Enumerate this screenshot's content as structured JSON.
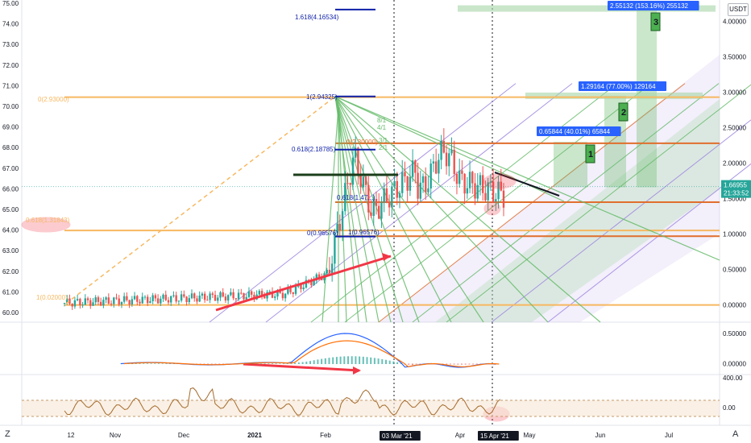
{
  "chart_data": [
    {
      "type": "line",
      "title": "",
      "panel": "price",
      "y_left": {
        "ylim": [
          59.6,
          75.3
        ],
        "ticks": [
          "75.00",
          "74.00",
          "73.00",
          "72.00",
          "71.00",
          "70.00",
          "69.00",
          "68.00",
          "67.00",
          "66.00",
          "65.00",
          "64.00",
          "63.00",
          "62.00",
          "61.00",
          "60.00"
        ]
      },
      "y_right": {
        "unit": "USDT",
        "ticks": [
          "4.00000",
          "3.50000",
          "3.00000",
          "2.50000",
          "2.00000",
          "1.50000",
          "1.00000",
          "0.50000",
          "0.00000"
        ]
      },
      "x_ticks": [
        "12",
        "Nov",
        "Dec",
        "2021",
        "Feb",
        "Mar",
        "Apr",
        "May",
        "Jun",
        "Jul"
      ],
      "date_markers": [
        "03 Mar '21",
        "15 Apr '21"
      ],
      "current_price": "1.66955",
      "countdown": "21:33:52",
      "fib_labels": [
        "0(2.93000)",
        "1(2.94325)",
        "1.618(4.16534)",
        "0.618(2.18785)",
        "0(2.30000)",
        "0.618(1.31843)",
        "0.618(1.47...)",
        "0(0.96576)",
        "1(0.96576)",
        "1(0.02000)"
      ],
      "fan_labels": [
        "8/1",
        "4/1",
        "3/1",
        "2/1"
      ],
      "projections": [
        {
          "label": "0.65844 (40.01%) 65844",
          "target": "1"
        },
        {
          "label": "1.29164 (77.00%) 129164",
          "target": "2"
        },
        {
          "label": "2.55132 (153.16%) 255132",
          "target": "3"
        }
      ],
      "horizontal_levels": [
        {
          "value": 2.93,
          "color": "#f7b860"
        },
        {
          "value": 2.28,
          "color": "#e06e2c"
        },
        {
          "value": 1.45,
          "color": "#e06e2c"
        },
        {
          "value": 1.05,
          "color": "#f7b860"
        },
        {
          "value": 0.97,
          "color": "#e06e2c"
        },
        {
          "value": 0.0,
          "color": "#f7b860"
        }
      ],
      "colors": {
        "up": "#26a69a",
        "down": "#ef5350",
        "fib": "#f7b860",
        "level": "#e06e2c",
        "fan": "#4caf50",
        "label_bg": "#2962ff"
      }
    },
    {
      "type": "line",
      "panel": "macd",
      "y_ticks": [
        "0.50000",
        "0.00000"
      ],
      "series": [
        {
          "name": "",
          "color": "#2962ff"
        },
        {
          "name": "",
          "color": "#ff6d00"
        }
      ]
    },
    {
      "type": "line",
      "panel": "rsi",
      "y_ticks": [
        "400.00",
        "0.00"
      ],
      "series": [
        {
          "name": "",
          "color": "#a46a2b"
        }
      ]
    }
  ],
  "ui": {
    "corner_tag": "USDT",
    "logo": "Z",
    "goto": "A"
  }
}
